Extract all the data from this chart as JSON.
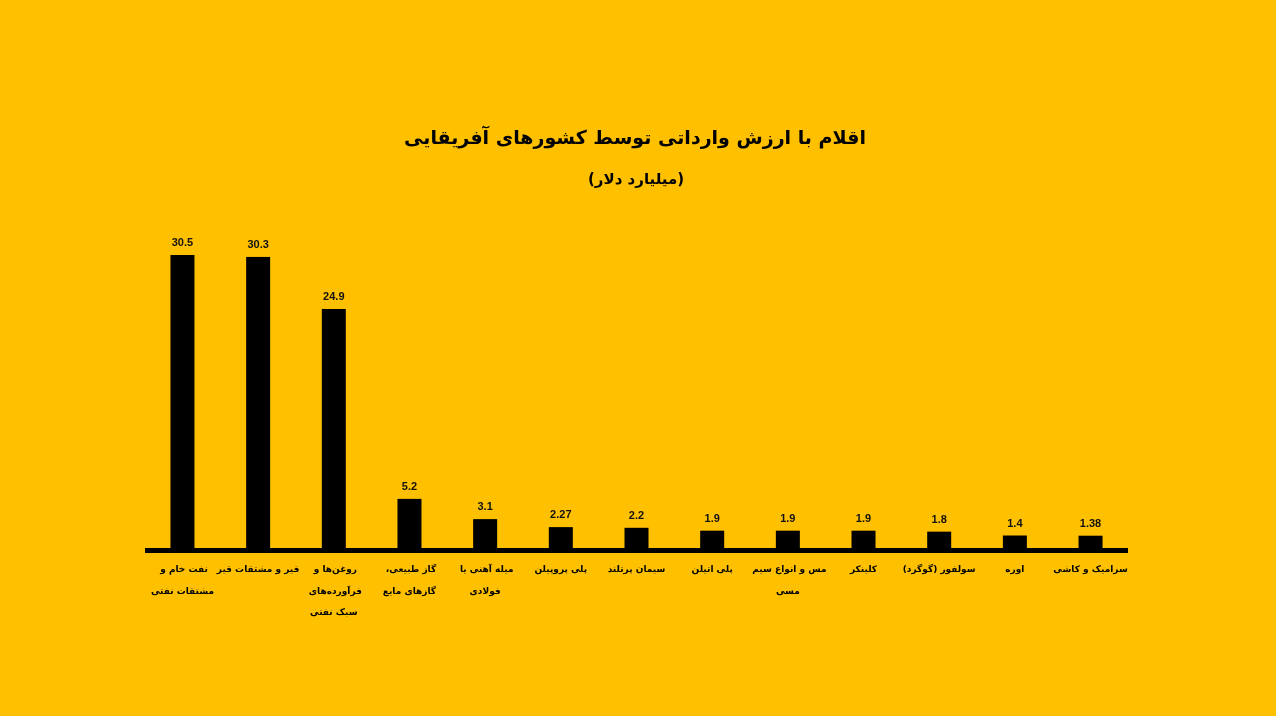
{
  "chart_data": {
    "type": "bar",
    "title": "اقلام با ارزش وارداتی توسط کشورهای آفریقایی",
    "subtitle": "(میلیارد دلار)",
    "categories": [
      "نفت خام و مشتقات نفتی",
      "قیر و مشتقات قیر",
      "روغن‌ها و فرآورده‌های سبک نفتی",
      "گاز طبیعی، گازهای مایع",
      "میله آهنی یا فولادی",
      "پلی پروپیلن",
      "سیمان پرتلند",
      "پلی اتیلن",
      "مس و انواع سیم مسی",
      "کلینکر",
      "سولفور (گوگرد)",
      "اوره",
      "سرامیک و کاشی"
    ],
    "values": [
      30.5,
      30.3,
      24.9,
      5.2,
      3.1,
      2.27,
      2.2,
      1.9,
      1.9,
      1.9,
      1.8,
      1.4,
      1.38
    ],
    "color": "#000000",
    "data_labels": true
  }
}
